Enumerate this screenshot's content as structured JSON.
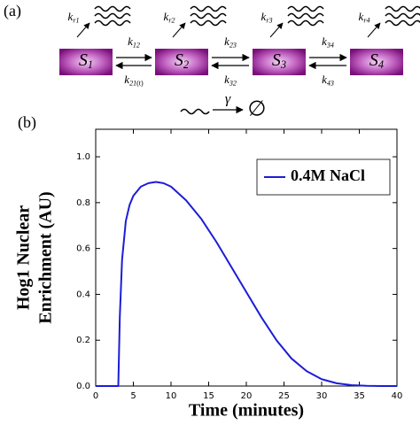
{
  "diagram": {
    "panel_label": "(a)",
    "species": [
      {
        "name": "S",
        "sub": "1"
      },
      {
        "name": "S",
        "sub": "2"
      },
      {
        "name": "S",
        "sub": "3"
      },
      {
        "name": "S",
        "sub": "4"
      }
    ],
    "emission_rates": [
      {
        "name": "k",
        "sub": "r1"
      },
      {
        "name": "k",
        "sub": "r2"
      },
      {
        "name": "k",
        "sub": "r3"
      },
      {
        "name": "k",
        "sub": "r4"
      }
    ],
    "forward_rates": [
      {
        "name": "k",
        "sub": "12"
      },
      {
        "name": "k",
        "sub": "23"
      },
      {
        "name": "k",
        "sub": "34"
      }
    ],
    "backward_rates": [
      {
        "name": "k",
        "sub": "21",
        "suffix": "(t)"
      },
      {
        "name": "k",
        "sub": "32"
      },
      {
        "name": "k",
        "sub": "43"
      }
    ],
    "decay_rate": "γ",
    "decay_product": "∅"
  },
  "chart_data": {
    "type": "line",
    "panel_label": "(b)",
    "xlabel": "Time (minutes)",
    "ylabel": [
      "Hog1 Nuclear",
      "Enrichment (AU)"
    ],
    "x": [
      0,
      3,
      3.2,
      3.5,
      4,
      4.5,
      5,
      6,
      7,
      8,
      9,
      10,
      12,
      14,
      16,
      18,
      20,
      22,
      24,
      26,
      28,
      30,
      32,
      34,
      36,
      38,
      40
    ],
    "series": [
      {
        "name": "0.4M NaCl",
        "color": "#1c1cd8",
        "values": [
          0,
          0,
          0.3,
          0.55,
          0.72,
          0.79,
          0.83,
          0.87,
          0.885,
          0.89,
          0.885,
          0.87,
          0.81,
          0.73,
          0.63,
          0.52,
          0.41,
          0.3,
          0.2,
          0.12,
          0.065,
          0.03,
          0.012,
          0.004,
          0.001,
          0,
          0
        ]
      }
    ],
    "xlim": [
      0,
      40
    ],
    "xticks": [
      0,
      5,
      10,
      15,
      20,
      25,
      30,
      35,
      40
    ],
    "ylim": [
      0,
      1.12
    ],
    "yticks": [
      {
        "value": 0,
        "label": "0.0"
      },
      0.2,
      0.4,
      0.6,
      0.8,
      {
        "value": 1,
        "label": "1.0"
      }
    ],
    "legend": "upper right"
  }
}
